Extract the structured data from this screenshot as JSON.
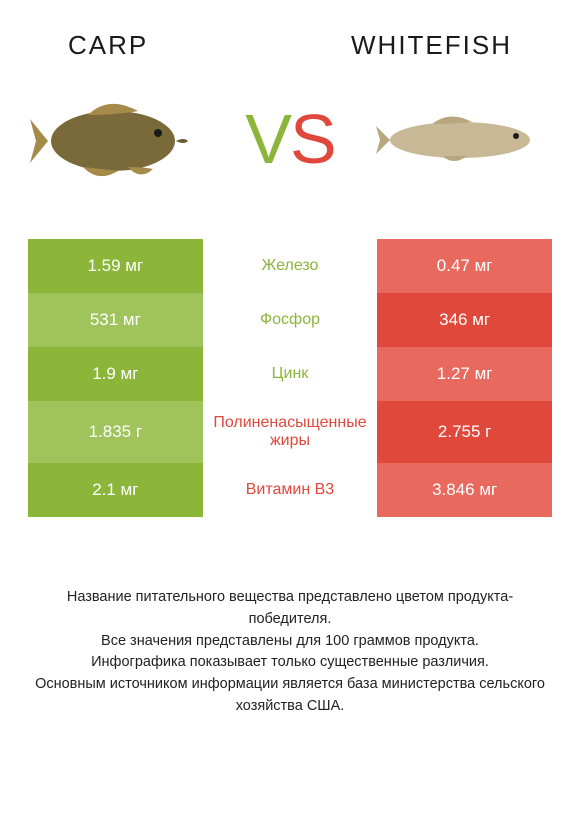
{
  "header": {
    "left_title": "Carp",
    "right_title": "Whitefish"
  },
  "vs": {
    "v_color": "#8bb63a",
    "s_color": "#e0483c"
  },
  "colors": {
    "carp_green_dark": "#8bb63a",
    "carp_green_light": "#a0c45c",
    "whitefish_red_dark": "#e0483c",
    "whitefish_red_light": "#e86a5e",
    "carp_body": "#7a6a3a",
    "carp_fin": "#a58a4a",
    "whitefish_body": "#c9b896",
    "whitefish_fin": "#b8a67f"
  },
  "rows": [
    {
      "left_value": "1.59 мг",
      "label": "Железо",
      "right_value": "0.47 мг",
      "left_bg": "#8bb63a",
      "label_color": "#8bb63a",
      "right_bg": "#e86a5e",
      "tall": false
    },
    {
      "left_value": "531 мг",
      "label": "Фосфор",
      "right_value": "346 мг",
      "left_bg": "#a0c45c",
      "label_color": "#8bb63a",
      "right_bg": "#e0483c",
      "tall": false
    },
    {
      "left_value": "1.9 мг",
      "label": "Цинк",
      "right_value": "1.27 мг",
      "left_bg": "#8bb63a",
      "label_color": "#8bb63a",
      "right_bg": "#e86a5e",
      "tall": false
    },
    {
      "left_value": "1.835 г",
      "label": "Полиненасыщенные жиры",
      "right_value": "2.755 г",
      "left_bg": "#a0c45c",
      "label_color": "#e0483c",
      "right_bg": "#e0483c",
      "tall": true
    },
    {
      "left_value": "2.1 мг",
      "label": "Витамин B3",
      "right_value": "3.846 мг",
      "left_bg": "#8bb63a",
      "label_color": "#e0483c",
      "right_bg": "#e86a5e",
      "tall": false
    }
  ],
  "footer": {
    "line1": "Название питательного вещества представлено цветом продукта-победителя.",
    "line2": "Все значения представлены для 100 граммов продукта.",
    "line3": "Инфографика показывает только существенные различия.",
    "line4": "Основным источником информации является база министерства сельского хозяйства США."
  }
}
